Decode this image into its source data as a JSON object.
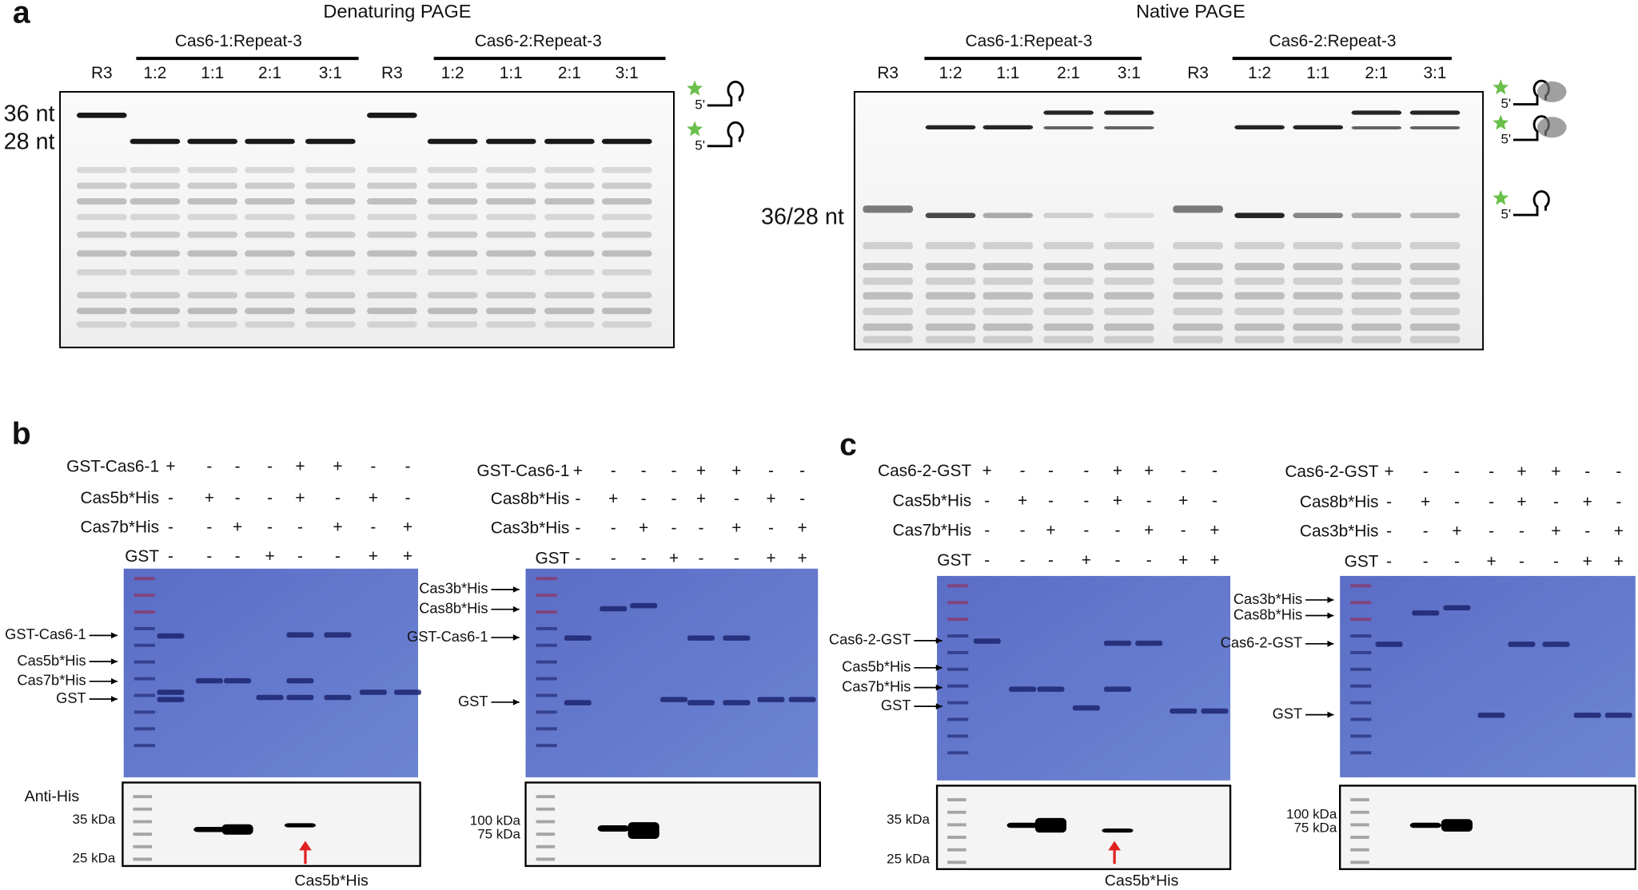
{
  "panel_a": {
    "label": "a",
    "gels": [
      {
        "title": "Denaturing PAGE",
        "groups": [
          "Cas6-1:Repeat-3",
          "Cas6-2:Repeat-3"
        ],
        "lanes": [
          "R3",
          "1:2",
          "1:1",
          "2:1",
          "3:1",
          "R3",
          "1:2",
          "1:1",
          "2:1",
          "3:1"
        ],
        "size_labels": [
          "36 nt",
          "28 nt"
        ],
        "end_labels": [
          "5'",
          "5'"
        ]
      },
      {
        "title": "Native PAGE",
        "groups": [
          "Cas6-1:Repeat-3",
          "Cas6-2:Repeat-3"
        ],
        "lanes": [
          "R3",
          "1:2",
          "1:1",
          "2:1",
          "3:1",
          "R3",
          "1:2",
          "1:1",
          "2:1",
          "3:1"
        ],
        "size_labels": [
          "36/28 nt"
        ],
        "end_labels": [
          "5'",
          "5'",
          "5'"
        ]
      }
    ]
  },
  "panel_b": {
    "label": "b",
    "blots": [
      {
        "rows": [
          {
            "name": "GST-Cas6-1",
            "signs": [
              "+",
              "-",
              "-",
              "-",
              "+",
              "+",
              "-",
              "-"
            ]
          },
          {
            "name": "Cas5b*His",
            "signs": [
              "-",
              "+",
              "-",
              "-",
              "+",
              "-",
              "+",
              "-"
            ]
          },
          {
            "name": "Cas7b*His",
            "signs": [
              "-",
              "-",
              "+",
              "-",
              "-",
              "+",
              "-",
              "+"
            ]
          },
          {
            "name": "GST",
            "signs": [
              "-",
              "-",
              "-",
              "+",
              "-",
              "-",
              "+",
              "+"
            ]
          }
        ],
        "band_labels": [
          "GST-Cas6-1",
          "Cas5b*His",
          "Cas7b*His",
          "GST"
        ],
        "blot_label": "Anti-His",
        "markers": [
          "35 kDa",
          "25 kDa"
        ],
        "arrow_label": "Cas5b*His"
      },
      {
        "rows": [
          {
            "name": "GST-Cas6-1",
            "signs": [
              "+",
              "-",
              "-",
              "-",
              "+",
              "+",
              "-",
              "-"
            ]
          },
          {
            "name": "Cas8b*His",
            "signs": [
              "-",
              "+",
              "-",
              "-",
              "+",
              "-",
              "+",
              "-"
            ]
          },
          {
            "name": "Cas3b*His",
            "signs": [
              "-",
              "-",
              "+",
              "-",
              "-",
              "+",
              "-",
              "+"
            ]
          },
          {
            "name": "GST",
            "signs": [
              "-",
              "-",
              "-",
              "+",
              "-",
              "-",
              "+",
              "+"
            ]
          }
        ],
        "band_labels": [
          "Cas3b*His",
          "Cas8b*His",
          "GST-Cas6-1",
          "GST"
        ],
        "markers": [
          "100 kDa",
          "75 kDa"
        ]
      }
    ]
  },
  "panel_c": {
    "label": "c",
    "blots": [
      {
        "rows": [
          {
            "name": "Cas6-2-GST",
            "signs": [
              "+",
              "-",
              "-",
              "-",
              "+",
              "+",
              "-",
              "-"
            ]
          },
          {
            "name": "Cas5b*His",
            "signs": [
              "-",
              "+",
              "-",
              "-",
              "+",
              "-",
              "+",
              "-"
            ]
          },
          {
            "name": "Cas7b*His",
            "signs": [
              "-",
              "-",
              "+",
              "-",
              "-",
              "+",
              "-",
              "+"
            ]
          },
          {
            "name": "GST",
            "signs": [
              "-",
              "-",
              "-",
              "+",
              "-",
              "-",
              "+",
              "+"
            ]
          }
        ],
        "band_labels": [
          "Cas6-2-GST",
          "Cas5b*His",
          "Cas7b*His",
          "GST"
        ],
        "markers": [
          "35 kDa",
          "25 kDa"
        ],
        "arrow_label": "Cas5b*His"
      },
      {
        "rows": [
          {
            "name": "Cas6-2-GST",
            "signs": [
              "+",
              "-",
              "-",
              "-",
              "+",
              "+",
              "-",
              "-"
            ]
          },
          {
            "name": "Cas8b*His",
            "signs": [
              "-",
              "+",
              "-",
              "-",
              "+",
              "-",
              "+",
              "-"
            ]
          },
          {
            "name": "Cas3b*His",
            "signs": [
              "-",
              "-",
              "+",
              "-",
              "-",
              "+",
              "-",
              "+"
            ]
          },
          {
            "name": "GST",
            "signs": [
              "-",
              "-",
              "-",
              "+",
              "-",
              "-",
              "+",
              "+"
            ]
          }
        ],
        "band_labels": [
          "Cas3b*His",
          "Cas8b*His",
          "Cas6-2-GST",
          "GST"
        ],
        "markers": [
          "100 kDa",
          "75 kDa"
        ]
      }
    ]
  }
}
